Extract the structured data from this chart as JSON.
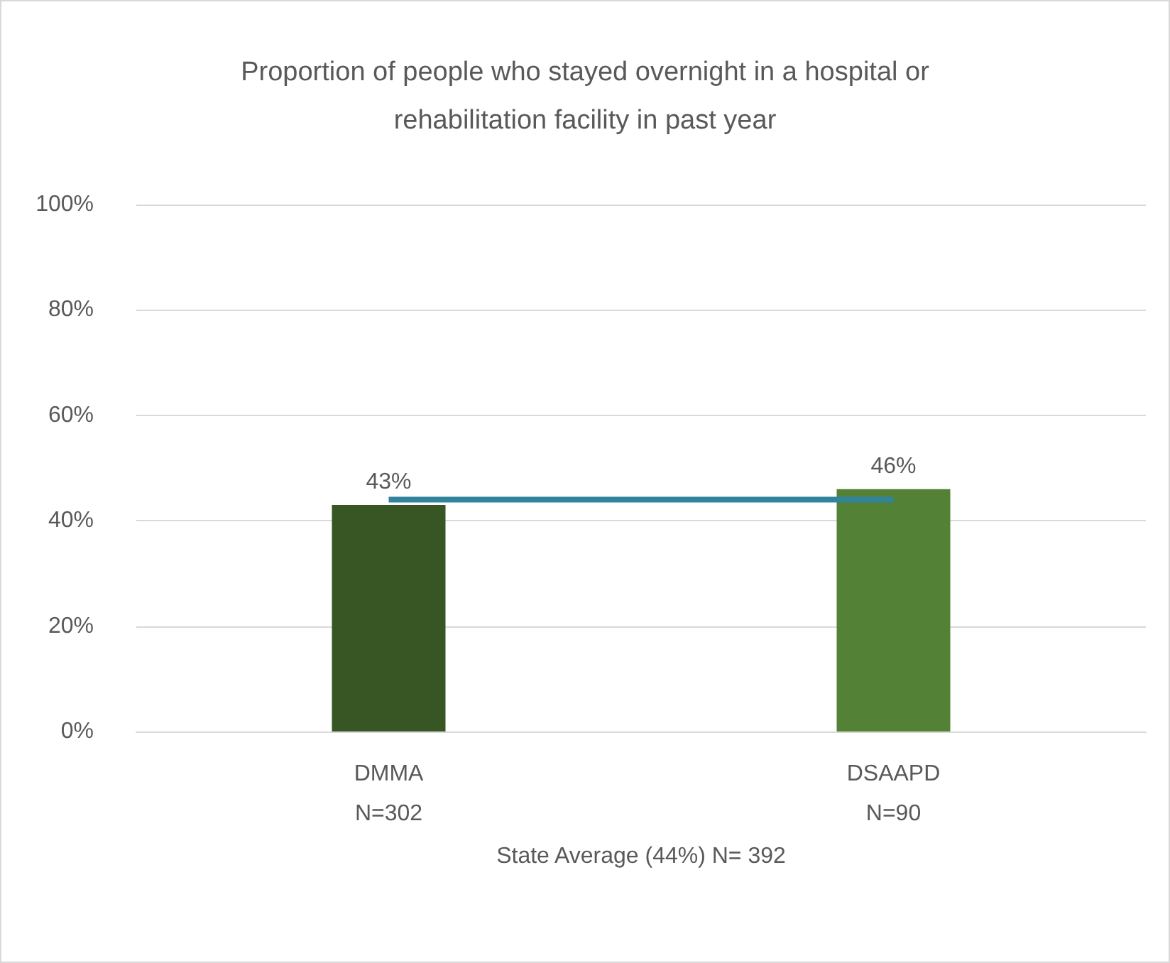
{
  "chart_data": {
    "type": "bar",
    "title": "Proportion of people who stayed overnight in a hospital or\nrehabilitation facility in past year",
    "xlabel": "State Average (44%) N= 392",
    "categories": [
      "DMMA\nN=302",
      "DSAAPD\nN=90"
    ],
    "series": [
      {
        "colors": [
          "#375623",
          "#538135"
        ],
        "values": [
          43,
          46
        ],
        "value_labels": [
          "43%",
          "46%"
        ]
      },
      {
        "type": "line",
        "color": "#31849b",
        "values": [
          44,
          44
        ],
        "marker": "none"
      }
    ],
    "ylim": [
      0,
      100
    ],
    "yticks": [
      {
        "value": 0,
        "label": "0%"
      },
      {
        "value": 20,
        "label": "20%"
      },
      {
        "value": 40,
        "label": "40%"
      },
      {
        "value": 60,
        "label": "60%"
      },
      {
        "value": 80,
        "label": "80%"
      },
      {
        "value": 100,
        "label": "100%"
      }
    ],
    "grid": "y"
  }
}
